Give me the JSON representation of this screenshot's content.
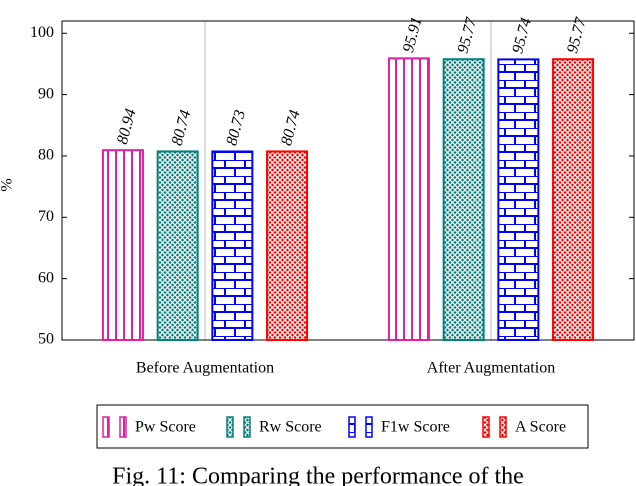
{
  "chart_data": {
    "type": "bar",
    "ylabel": "%",
    "categories": [
      "Before Augmentation",
      "After Augmentation"
    ],
    "series": [
      {
        "name": "Pw Score",
        "color": "#e0209e",
        "hatch": "vertical",
        "values": [
          80.94,
          95.91
        ]
      },
      {
        "name": "Rw Score",
        "color": "#008080",
        "hatch": "crosshatch",
        "values": [
          80.74,
          95.77
        ]
      },
      {
        "name": "F1w Score",
        "color": "#0000ff",
        "hatch": "bricks",
        "values": [
          80.73,
          95.74
        ]
      },
      {
        "name": "A Score",
        "color": "#ff0000",
        "hatch": "crosshatch",
        "values": [
          80.74,
          95.77
        ]
      }
    ],
    "ylim": [
      50,
      102
    ],
    "yticks": [
      50,
      60,
      70,
      80,
      90,
      100
    ],
    "grid": true,
    "caption": "Fig. 11: Comparing the performance of the"
  }
}
